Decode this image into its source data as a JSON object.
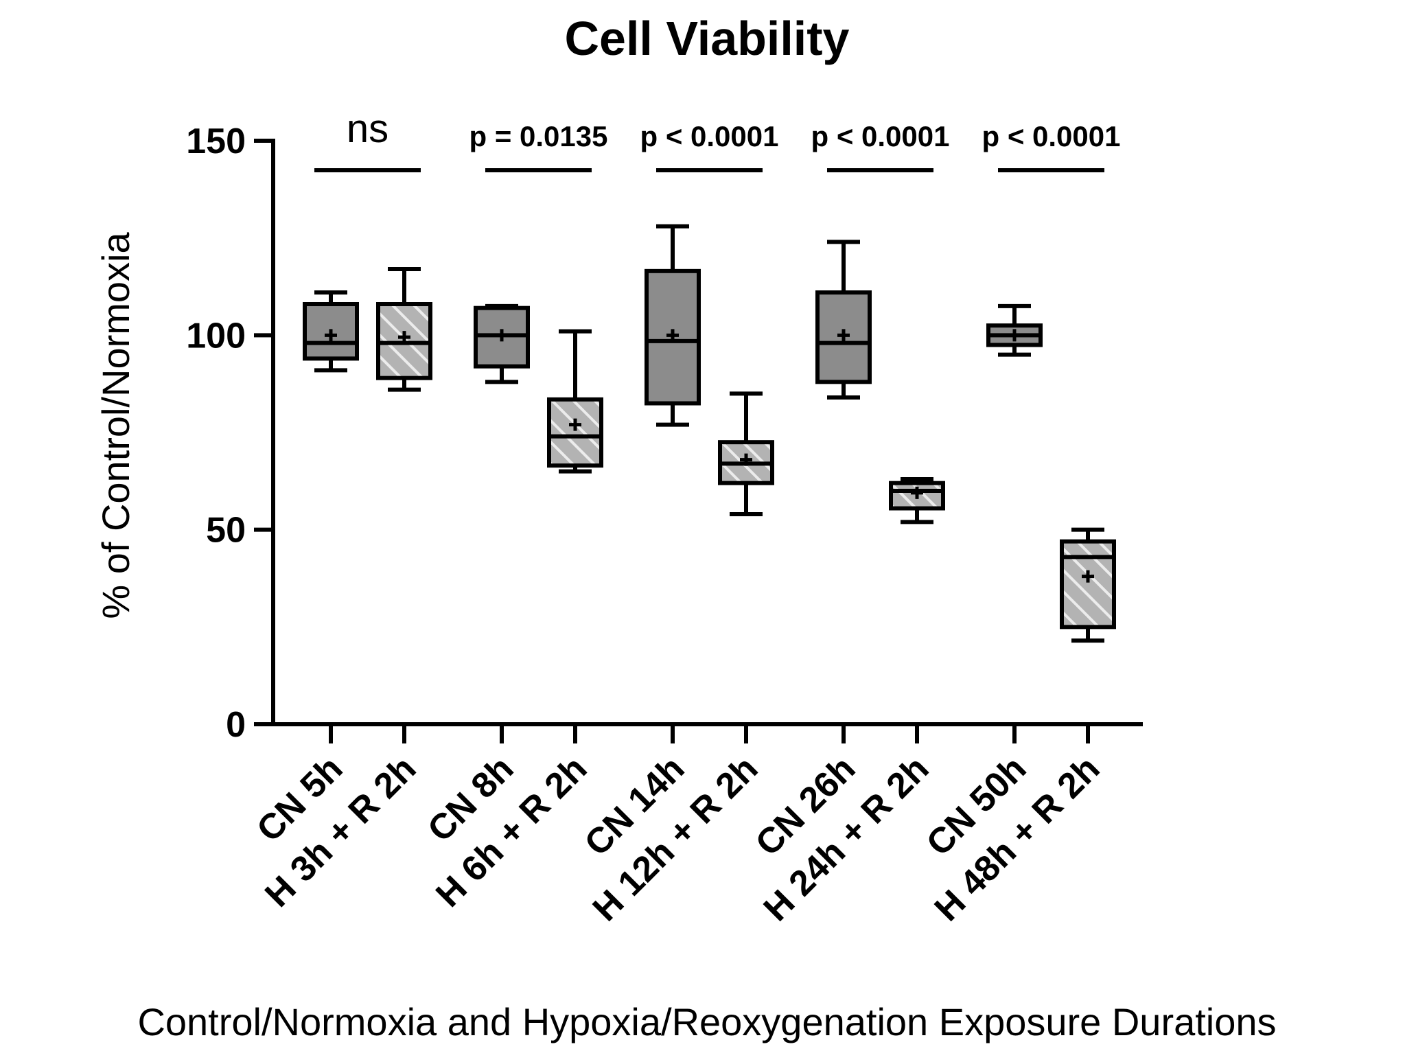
{
  "chart_data": {
    "type": "box",
    "title": "Cell Viability",
    "ylabel": "% of Control/Normoxia",
    "xlabel": "Control/Normoxia and Hypoxia/Reoxygenation Exposure Durations",
    "ylim": [
      0,
      150
    ],
    "yticks": [
      0,
      50,
      100,
      150
    ],
    "colors": {
      "box_fill": "#8c8c8c",
      "hatch_bg": "#b3b3b3",
      "hatch_line": "#ececec",
      "ink": "#000000"
    },
    "groups": [
      {
        "name": "CN 5h",
        "style": "solid",
        "min": 91,
        "q1": 94,
        "median": 98,
        "q3": 108,
        "max": 111,
        "mean": 100
      },
      {
        "name": "H 3h + R 2h",
        "style": "hatched",
        "min": 86,
        "q1": 89,
        "median": 98,
        "q3": 108,
        "max": 117,
        "mean": 99.5
      },
      {
        "name": "CN 8h",
        "style": "solid",
        "min": 88,
        "q1": 92,
        "median": 100,
        "q3": 107,
        "max": 107.5,
        "mean": 100
      },
      {
        "name": "H 6h + R 2h",
        "style": "hatched",
        "min": 65,
        "q1": 66.5,
        "median": 74,
        "q3": 83.5,
        "max": 101,
        "mean": 77
      },
      {
        "name": "CN 14h",
        "style": "solid",
        "min": 77,
        "q1": 82.5,
        "median": 98.5,
        "q3": 116.5,
        "max": 128,
        "mean": 100
      },
      {
        "name": "H 12h + R 2h",
        "style": "hatched",
        "min": 54,
        "q1": 62,
        "median": 67,
        "q3": 72.5,
        "max": 85,
        "mean": 68
      },
      {
        "name": "CN 26h",
        "style": "solid",
        "min": 84,
        "q1": 88,
        "median": 98,
        "q3": 111,
        "max": 124,
        "mean": 100
      },
      {
        "name": "H 24h + R 2h",
        "style": "hatched",
        "min": 52,
        "q1": 55.5,
        "median": 60,
        "q3": 62,
        "max": 63,
        "mean": 59.5
      },
      {
        "name": "CN 50h",
        "style": "solid",
        "min": 95,
        "q1": 97.5,
        "median": 100,
        "q3": 102.5,
        "max": 107.5,
        "mean": 100
      },
      {
        "name": "H 48h + R 2h",
        "style": "hatched",
        "min": 21.5,
        "q1": 25,
        "median": 43,
        "q3": 47,
        "max": 50,
        "mean": 38
      }
    ],
    "comparisons": [
      {
        "pair": [
          0,
          1
        ],
        "label": "ns"
      },
      {
        "pair": [
          2,
          3
        ],
        "label": "p = 0.0135"
      },
      {
        "pair": [
          4,
          5
        ],
        "label": "p < 0.0001"
      },
      {
        "pair": [
          6,
          7
        ],
        "label": "p < 0.0001"
      },
      {
        "pair": [
          8,
          9
        ],
        "label": "p < 0.0001"
      }
    ]
  }
}
